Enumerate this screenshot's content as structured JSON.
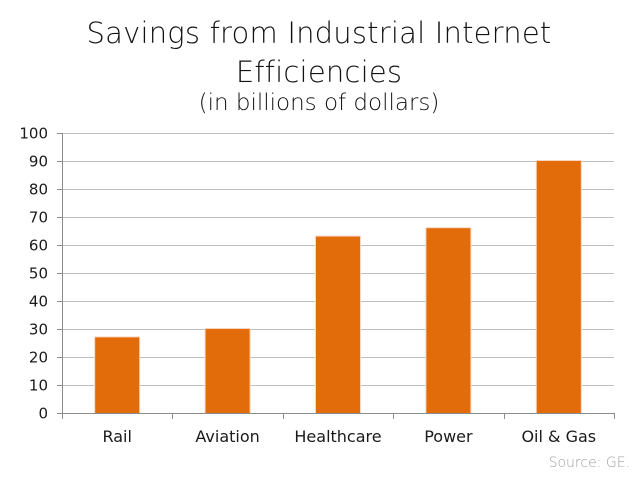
{
  "chart_data": {
    "type": "bar",
    "title": "Savings from Industrial Internet Efficiencies",
    "title_lines": [
      "Savings from Industrial Internet",
      "Efficiencies"
    ],
    "subtitle": "(in billions of dollars)",
    "categories": [
      "Rail",
      "Aviation",
      "Healthcare",
      "Power",
      "Oil & Gas"
    ],
    "values": [
      27,
      30,
      63,
      66,
      90
    ],
    "xlabel": "",
    "ylabel": "",
    "ylim": [
      0,
      100
    ],
    "yticks": [
      0,
      10,
      20,
      30,
      40,
      50,
      60,
      70,
      80,
      90,
      100
    ],
    "grid": true,
    "legend": "none",
    "colors": {
      "bar": "#E36C0A",
      "bar_edge": "#F8D5C0",
      "grid": "#BFBFBF",
      "axis": "#8C8C8C"
    }
  },
  "source": "Source: GE."
}
